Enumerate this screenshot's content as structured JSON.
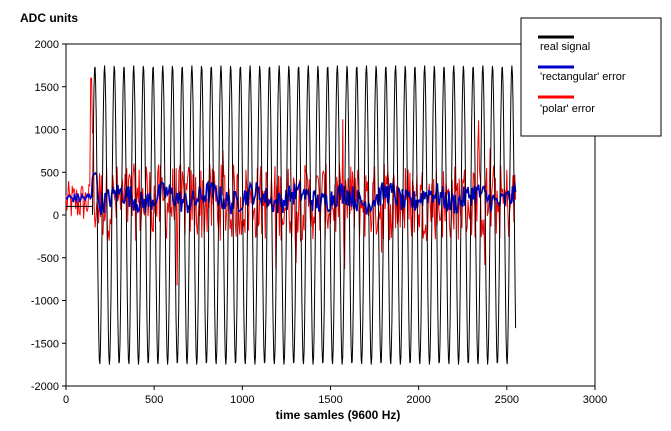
{
  "chart_data": {
    "type": "line",
    "title": "",
    "ylabel": "ADC units",
    "xlabel": "time samles (9600 Hz)",
    "xlim": [
      0,
      3000
    ],
    "ylim": [
      -2000,
      2000
    ],
    "xticks": [
      0,
      500,
      1000,
      1500,
      2000,
      2500,
      3000
    ],
    "yticks": [
      2000,
      1500,
      1000,
      500,
      0,
      -500,
      -1000,
      -1500,
      -2000
    ],
    "grid": false,
    "legend_position": "top-right",
    "series": [
      {
        "name": "real signal",
        "color": "#000000",
        "pattern": "sine",
        "start_sample": 150,
        "end_sample": 2550,
        "amplitude": 1750,
        "center": 0,
        "period_samples": 55,
        "pre_start_level": 100
      },
      {
        "name": "'rectangular' error",
        "color": "#0000cc",
        "pattern": "noise",
        "start_sample": 0,
        "end_sample": 2550,
        "center": 200,
        "spread": 280,
        "initial_spike": 500
      },
      {
        "name": "'polar' error",
        "color": "#ff0000",
        "pattern": "noise",
        "start_sample": 0,
        "end_sample": 2550,
        "center": 150,
        "spread": 1300,
        "max_value": 1600,
        "min_value": -1150
      }
    ]
  }
}
